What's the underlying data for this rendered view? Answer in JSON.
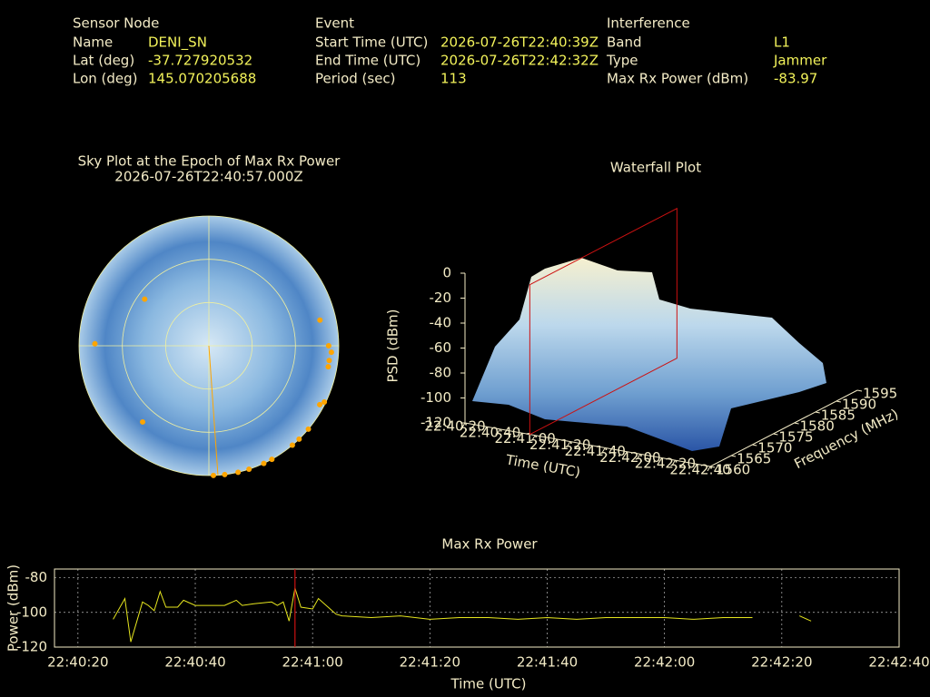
{
  "info": {
    "sections": [
      {
        "heading": "Sensor Node",
        "rows": [
          [
            "Name",
            "DENI_SN"
          ],
          [
            "Lat (deg)",
            "-37.727920532"
          ],
          [
            "Lon (deg)",
            "145.070205688"
          ]
        ]
      },
      {
        "heading": "Event",
        "rows": [
          [
            "Start Time (UTC)",
            "2026-07-26T22:40:39Z"
          ],
          [
            "End Time (UTC)",
            "2026-07-26T22:42:32Z"
          ],
          [
            "Period (sec)",
            "113"
          ]
        ]
      },
      {
        "heading": "Interference",
        "rows": [
          [
            "Band",
            "L1"
          ],
          [
            "Type",
            "Jammer"
          ],
          [
            "Max Rx Power (dBm)",
            "-83.97"
          ]
        ]
      }
    ]
  },
  "chart_data": [
    {
      "type": "polar",
      "title": "Sky Plot at the Epoch of Max Rx Power",
      "subtitle": "2026-07-26T22:40:57.000Z",
      "rlim": [
        90,
        0
      ],
      "rings": [
        60,
        30,
        0
      ],
      "spokes": [
        0,
        90,
        180,
        270
      ],
      "color": "#ffa500",
      "line_azimuth": 176,
      "azimuth": [
        306,
        271,
        221,
        77,
        90,
        93,
        97,
        100,
        118,
        116,
        130,
        136,
        140,
        151,
        155,
        162,
        167,
        173,
        178
      ],
      "elevation": [
        35,
        11,
        20,
        11,
        7,
        5,
        6,
        6,
        3,
        1,
        0,
        0,
        0,
        0,
        0,
        0,
        0,
        0,
        0
      ]
    },
    {
      "type": "waterfall",
      "title": "Waterfall Plot",
      "xlabel": "Time (UTC)",
      "ylabel": "Frequency (MHz)",
      "zlabel": "PSD (dBm)",
      "xlim": [
        "22:40:20",
        "22:42:40"
      ],
      "xticks": [
        "22:40:20",
        "22:40:40",
        "22:41:00",
        "22:41:20",
        "22:41:40",
        "22:42:00",
        "22:42:20",
        "22:42:40"
      ],
      "ylim": [
        1560,
        1595
      ],
      "yticks": [
        1560,
        1565,
        1570,
        1575,
        1580,
        1585,
        1590,
        1595
      ],
      "zlim": [
        -120,
        0
      ],
      "zticks": [
        0,
        -20,
        -40,
        -60,
        -80,
        -100,
        -120
      ],
      "marker_x": "22:40:57",
      "marker_color": "#cc1111"
    },
    {
      "type": "line",
      "title": "Max Rx Power",
      "xlabel": "Time (UTC)",
      "ylabel": "Power (dBm)",
      "color": "#e6e61e",
      "grid": true,
      "xlim": [
        "22:40:16",
        "22:42:40"
      ],
      "xticks": [
        "22:40:20",
        "22:40:40",
        "22:41:00",
        "22:41:20",
        "22:41:40",
        "22:42:00",
        "22:42:20",
        "22:42:40"
      ],
      "ylim": [
        -120,
        -75
      ],
      "yticks": [
        -80,
        -100,
        -120
      ],
      "marker_x": "22:40:57",
      "marker_color": "#cc1111",
      "x": [
        "22:40:26",
        "22:40:28",
        "22:40:29",
        "22:40:31",
        "22:40:32",
        "22:40:33",
        "22:40:34",
        "22:40:35",
        "22:40:37",
        "22:40:38",
        "22:40:40",
        "22:40:42",
        "22:40:45",
        "22:40:47",
        "22:40:48",
        "22:40:50",
        "22:40:53",
        "22:40:54",
        "22:40:55",
        "22:40:56",
        "22:40:57",
        "22:40:58",
        "22:41:00",
        "22:41:01",
        "22:41:03",
        "22:41:04",
        "22:41:05",
        "22:41:10",
        "22:41:15",
        "22:41:20",
        "22:41:25",
        "22:41:30",
        "22:41:35",
        "22:41:40",
        "22:41:45",
        "22:41:50",
        "22:41:55",
        "22:42:00",
        "22:42:05",
        "22:42:10",
        "22:42:15",
        "22:42:19",
        "22:42:23",
        "22:42:25"
      ],
      "values": [
        -104,
        -92,
        -117,
        -94,
        -96,
        -99,
        -88,
        -97,
        -97,
        -93,
        -96,
        -96,
        -96,
        -93,
        -96,
        -95,
        -94,
        -96,
        -94,
        -105,
        -86,
        -97,
        -98,
        -92,
        -98,
        -101,
        -102,
        -103,
        -102,
        -104,
        -103,
        -103,
        -104,
        -103,
        -104,
        -103,
        -103,
        -103,
        -104,
        -103,
        -103,
        null,
        -102,
        -105
      ]
    }
  ]
}
